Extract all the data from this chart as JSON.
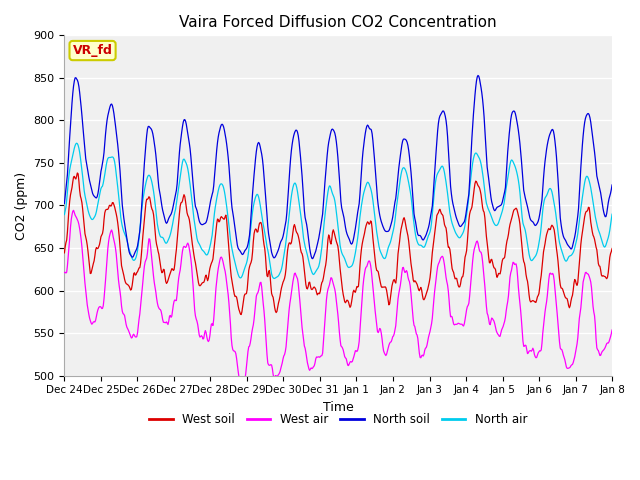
{
  "title": "Vaira Forced Diffusion CO2 Concentration",
  "xlabel": "Time",
  "ylabel": "CO2 (ppm)",
  "ylim": [
    500,
    900
  ],
  "series_colors": {
    "west_soil": "#dd0000",
    "west_air": "#ff00ff",
    "north_soil": "#0000dd",
    "north_air": "#00ccee"
  },
  "legend_labels": [
    "West soil",
    "West air",
    "North soil",
    "North air"
  ],
  "tick_labels": [
    "Dec 24",
    "Dec 25",
    "Dec 26",
    "Dec 27",
    "Dec 28",
    "Dec 29",
    "Dec 30",
    "Dec 31",
    "Jan 1",
    "Jan 2",
    "Jan 3",
    "Jan 4",
    "Jan 5",
    "Jan 6",
    "Jan 7",
    "Jan 8"
  ],
  "tick_positions": [
    0,
    1,
    2,
    3,
    4,
    5,
    6,
    7,
    8,
    9,
    10,
    11,
    12,
    13,
    14,
    15
  ],
  "yticks": [
    500,
    550,
    600,
    650,
    700,
    750,
    800,
    850,
    900
  ],
  "bg_color": "#ffffff",
  "plot_bg_color": "#f0f0f0",
  "annotation_text": "VR_fd",
  "n_points": 720,
  "random_seed": 7
}
